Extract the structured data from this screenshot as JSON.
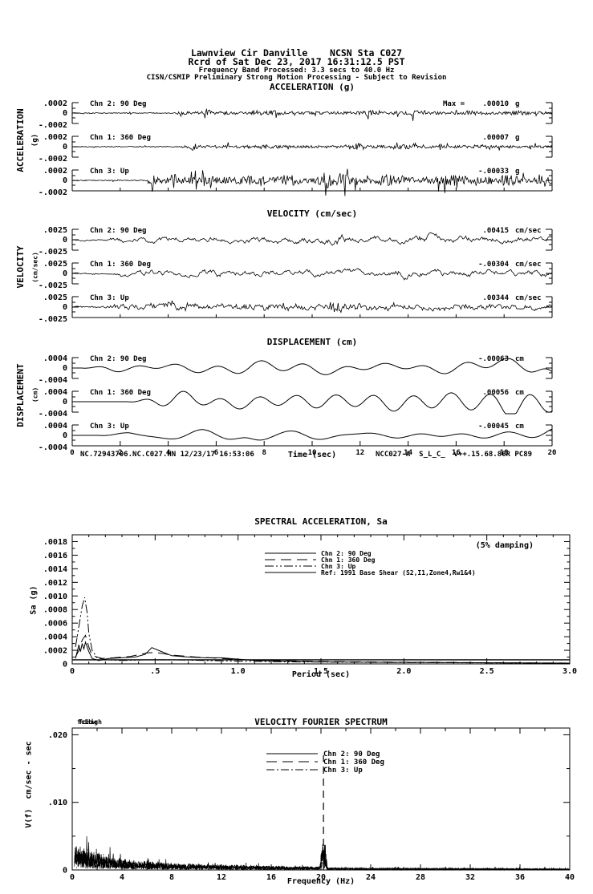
{
  "header": {
    "line1": "Lawnview Cir Danville    NCSN Sta C027",
    "line2": "Rcrd of Sat Dec 23, 2017 16:31:12.5 PST",
    "line3": "Frequency Band Processed: 3.3 secs to 40.0 Hz",
    "line4": "CISN/CSMIP Preliminary Strong Motion Processing - Subject to Revision"
  },
  "footers": {
    "left": "NC.72943706.NC.C027.HN 12/23/17 16:53:06",
    "right": "NCC027-A  S_L_C_  v++.15.68.86R PC89"
  },
  "colors": {
    "ink": "#000000",
    "paper": "#ffffff"
  },
  "chart_data": [
    {
      "id": "acceleration",
      "type": "line",
      "title": "ACCELERATION (g)",
      "ylabel_main": "ACCELERATION",
      "ylabel_unit": "(g)",
      "yrange": [
        -0.0002,
        0.0002
      ],
      "ytick_labels": {
        "top": ".0002",
        "zero": "0",
        "bottom": "-.0002"
      },
      "duration_sec": 20,
      "channels": [
        {
          "label": "Chn 2: 90 Deg",
          "max_prefix": "Max =",
          "max_value": ".00010",
          "unit": "g",
          "peak": 0.0001
        },
        {
          "label": "Chn 1: 360 Deg",
          "max_value": ".00007",
          "unit": "g",
          "peak": 7e-05
        },
        {
          "label": "Chn 3: Up",
          "max_value": "-.00033",
          "unit": "g",
          "peak": -0.00033
        }
      ]
    },
    {
      "id": "velocity",
      "type": "line",
      "title": "VELOCITY (cm/sec)",
      "ylabel_main": "VELOCITY",
      "ylabel_unit": "(cm/sec)",
      "yrange": [
        -0.0025,
        0.0025
      ],
      "ytick_labels": {
        "top": ".0025",
        "zero": "0",
        "bottom": "-.0025"
      },
      "duration_sec": 20,
      "channels": [
        {
          "label": "Chn 2: 90 Deg",
          "max_value": ".00415",
          "unit": "cm/sec",
          "peak": 0.00415
        },
        {
          "label": "Chn 1: 360 Deg",
          "max_value": "-.00304",
          "unit": "cm/sec",
          "peak": -0.00304
        },
        {
          "label": "Chn 3: Up",
          "max_value": ".00344",
          "unit": "cm/sec",
          "peak": 0.00344
        }
      ]
    },
    {
      "id": "displacement",
      "type": "line",
      "title": "DISPLACEMENT (cm)",
      "ylabel_main": "DISPLACEMENT",
      "ylabel_unit": "(cm)",
      "yrange": [
        -0.0004,
        0.0004
      ],
      "ytick_labels": {
        "top": ".0004",
        "zero": "0",
        "bottom": "-.0004"
      },
      "duration_sec": 20,
      "xlabel": "Time (sec)",
      "xtick_labels": [
        "0",
        "2",
        "4",
        "6",
        "8",
        "10",
        "12",
        "14",
        "16",
        "18",
        "20"
      ],
      "channels": [
        {
          "label": "Chn 2: 90 Deg",
          "max_value": "-.00063",
          "unit": "cm",
          "peak": -0.00063
        },
        {
          "label": "Chn 1: 360 Deg",
          "max_value": ".00056",
          "unit": "cm",
          "peak": 0.00056
        },
        {
          "label": "Chn 3: Up",
          "max_value": "-.00045",
          "unit": "cm",
          "peak": -0.00045
        }
      ]
    },
    {
      "id": "spectral_acceleration",
      "type": "line",
      "title": "SPECTRAL ACCELERATION, Sa",
      "annotation": "(5% damping)",
      "xlabel": "Period (sec)",
      "ylabel": "Sa (g)",
      "xlim": [
        0,
        3.0
      ],
      "ylim": [
        0,
        0.0019
      ],
      "xtick_values": [
        0,
        0.5,
        1.0,
        1.5,
        2.0,
        2.5,
        3.0
      ],
      "xtick_labels": [
        "0",
        ".5",
        "1.0",
        "1.5",
        "2.0",
        "2.5",
        "3.0"
      ],
      "ytick_labels": [
        ".0018",
        ".0016",
        ".0014",
        ".0012",
        ".0010",
        ".0008",
        ".0006",
        ".0004",
        ".0002",
        "0"
      ],
      "legend": [
        {
          "label": "Chn 2: 90 Deg",
          "dash": "solid"
        },
        {
          "label": "Chn 1: 360 Deg",
          "dash": "longdash"
        },
        {
          "label": "Chn 3: Up",
          "dash": "dashdotdot"
        },
        {
          "label": "Ref: 1991 Base Shear (S2,I1,Zone4,Rw1&4)",
          "dash": "solid"
        }
      ],
      "series": [
        {
          "name": "Chn 2: 90 Deg",
          "dash": "solid",
          "points": [
            [
              0.02,
              8e-05
            ],
            [
              0.04,
              0.00028
            ],
            [
              0.05,
              0.00018
            ],
            [
              0.06,
              0.0003
            ],
            [
              0.07,
              0.00022
            ],
            [
              0.08,
              0.00032
            ],
            [
              0.1,
              0.00018
            ],
            [
              0.12,
              8e-05
            ],
            [
              0.16,
              5e-05
            ],
            [
              0.22,
              8e-05
            ],
            [
              0.3,
              9e-05
            ],
            [
              0.38,
              0.0001
            ],
            [
              0.44,
              0.00014
            ],
            [
              0.48,
              0.00024
            ],
            [
              0.52,
              0.0002
            ],
            [
              0.6,
              0.00012
            ],
            [
              0.7,
              0.0001
            ],
            [
              0.8,
              9e-05
            ],
            [
              0.9,
              9e-05
            ],
            [
              1.0,
              7e-05
            ],
            [
              1.1,
              5e-05
            ],
            [
              1.3,
              4e-05
            ],
            [
              1.5,
              3e-05
            ],
            [
              1.8,
              2.5e-05
            ],
            [
              2.2,
              2e-05
            ],
            [
              2.6,
              1.5e-05
            ],
            [
              3.0,
              1.2e-05
            ]
          ]
        },
        {
          "name": "Chn 1: 360 Deg",
          "dash": "longdash",
          "points": [
            [
              0.02,
              0.0001
            ],
            [
              0.04,
              0.0002
            ],
            [
              0.06,
              0.00035
            ],
            [
              0.08,
              0.00042
            ],
            [
              0.1,
              0.00025
            ],
            [
              0.12,
              0.00012
            ],
            [
              0.18,
              8e-05
            ],
            [
              0.25,
              9e-05
            ],
            [
              0.35,
              0.00011
            ],
            [
              0.45,
              0.00016
            ],
            [
              0.5,
              0.00017
            ],
            [
              0.6,
              0.00013
            ],
            [
              0.75,
              0.0001
            ],
            [
              0.9,
              8e-05
            ],
            [
              1.0,
              6e-05
            ],
            [
              1.2,
              5e-05
            ],
            [
              1.5,
              3.5e-05
            ],
            [
              2.0,
              2.5e-05
            ],
            [
              2.5,
              1.8e-05
            ],
            [
              3.0,
              1.2e-05
            ]
          ]
        },
        {
          "name": "Chn 3: Up",
          "dash": "dashdotdot",
          "points": [
            [
              0.02,
              0.00025
            ],
            [
              0.04,
              0.00055
            ],
            [
              0.06,
              0.00085
            ],
            [
              0.075,
              0.00098
            ],
            [
              0.09,
              0.00075
            ],
            [
              0.1,
              0.00045
            ],
            [
              0.12,
              0.0002
            ],
            [
              0.15,
              9e-05
            ],
            [
              0.2,
              6e-05
            ],
            [
              0.3,
              5e-05
            ],
            [
              0.45,
              6e-05
            ],
            [
              0.6,
              6e-05
            ],
            [
              0.8,
              5e-05
            ],
            [
              1.0,
              4e-05
            ],
            [
              1.3,
              3e-05
            ],
            [
              1.6,
              2.5e-05
            ],
            [
              2.0,
              2e-05
            ],
            [
              2.5,
              1.5e-05
            ],
            [
              3.0,
              1e-05
            ]
          ]
        },
        {
          "name": "Ref: 1991 Base Shear (S2,I1,Zone4,Rw1&4)",
          "dash": "solid",
          "points": [
            [
              0.0,
              6e-05
            ],
            [
              3.0,
              6e-05
            ]
          ]
        }
      ]
    },
    {
      "id": "velocity_fourier_spectrum",
      "type": "line",
      "title": "VELOCITY FOURIER SPECTRUM",
      "xlabel": "Frequency (Hz)",
      "ylabel": "V(f)  cm/sec - sec",
      "corner_label_low": "fcLow",
      "corner_label_high": "fcHigh",
      "xlim": [
        0,
        40
      ],
      "ylim": [
        0,
        0.021
      ],
      "xtick_labels": [
        "0",
        "4",
        "8",
        "12",
        "16",
        "20",
        "24",
        "28",
        "32",
        "36",
        "40"
      ],
      "ytick_labels": [
        ".020",
        ".010",
        "0"
      ],
      "ytick_values": [
        0.02,
        0.01,
        0
      ],
      "legend": [
        {
          "label": "Chn 2: 90 Deg",
          "dash": "solid"
        },
        {
          "label": "Chn 1: 360 Deg",
          "dash": "longdash"
        },
        {
          "label": "Chn 3: Up",
          "dash": "dashdot"
        }
      ],
      "spike": {
        "frequency_hz": 20.2,
        "peak": 0.017,
        "style": "longdash"
      },
      "noise_envelope": [
        [
          0,
          0.0012
        ],
        [
          0.3,
          0.0038
        ],
        [
          0.8,
          0.0034
        ],
        [
          2,
          0.0026
        ],
        [
          4,
          0.0017
        ],
        [
          8,
          0.001
        ],
        [
          12,
          0.0008
        ],
        [
          16,
          0.0006
        ],
        [
          19.9,
          0.0005
        ],
        [
          20.1,
          0.0045
        ],
        [
          20.35,
          0.0045
        ],
        [
          20.5,
          0.00035
        ],
        [
          24,
          0.0003
        ],
        [
          32,
          0.00025
        ],
        [
          40,
          0.0002
        ]
      ]
    }
  ]
}
